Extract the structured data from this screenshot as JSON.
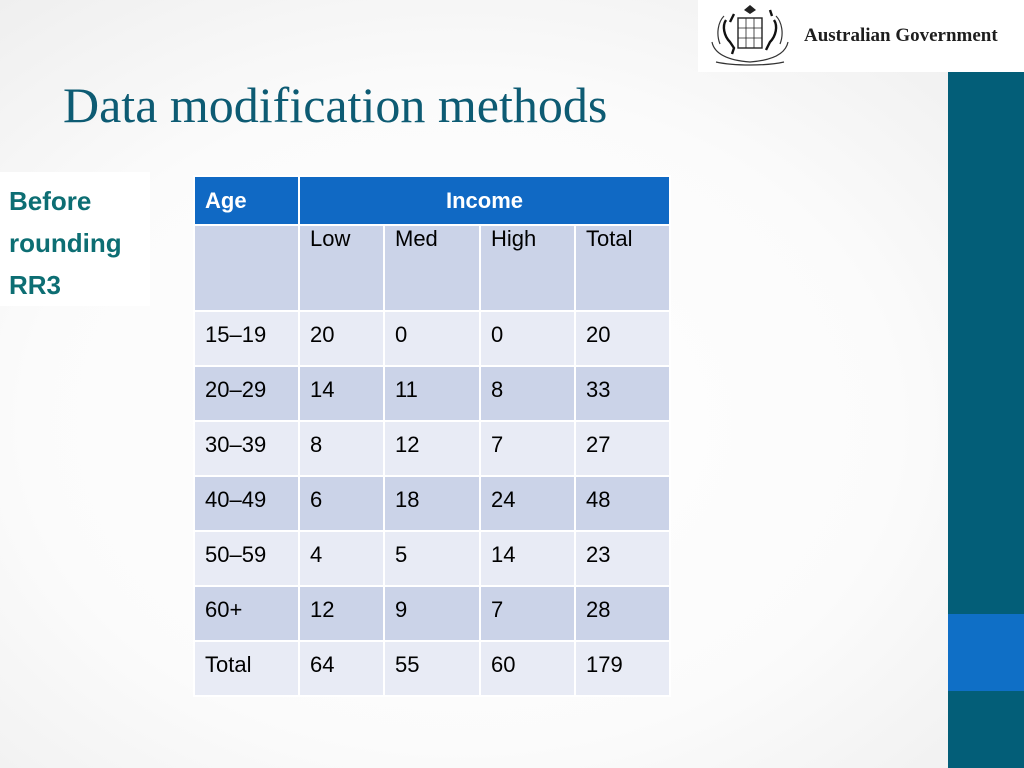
{
  "slide": {
    "title": "Data modification methods",
    "side_note_lines": [
      "Before",
      "rounding",
      "RR3"
    ]
  },
  "logo": {
    "text": "Australian Government"
  },
  "table": {
    "header": {
      "age": "Age",
      "income": "Income"
    },
    "subheader": [
      "",
      "Low",
      "Med",
      "High",
      "Total"
    ],
    "rows": [
      [
        "15–19",
        "20",
        "0",
        "0",
        "20"
      ],
      [
        "20–29",
        "14",
        "11",
        "8",
        "33"
      ],
      [
        "30–39",
        "8",
        "12",
        "7",
        "27"
      ],
      [
        "40–49",
        "6",
        "18",
        "24",
        "48"
      ],
      [
        "50–59",
        "4",
        "5",
        "14",
        "23"
      ],
      [
        "60+",
        "12",
        "9",
        "7",
        "28"
      ],
      [
        "Total",
        "64",
        "55",
        "60",
        "179"
      ]
    ]
  },
  "colors": {
    "title": "#0d5b73",
    "side_note": "#0d6e73",
    "table_header": "#1069c4",
    "band_dark": "#cbd3e8",
    "band_light": "#e8ebf5",
    "right_bar": "#035e78",
    "right_bar_accent": "#0f6fc6"
  }
}
